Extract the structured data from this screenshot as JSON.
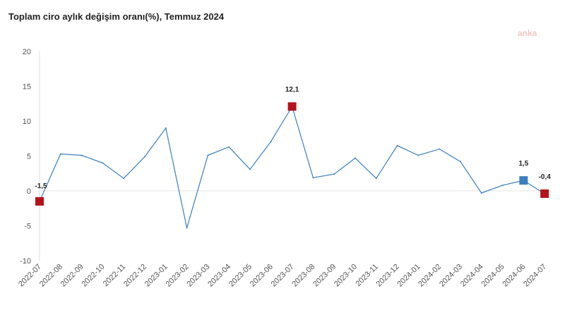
{
  "chart_data": {
    "type": "line",
    "title": "Toplam ciro aylık değişim oranı(%), Temmuz 2024",
    "watermark": "anka",
    "xlabel": "",
    "ylabel": "",
    "ylim": [
      -10,
      20
    ],
    "yticks": [
      20,
      15,
      10,
      5,
      0,
      -5,
      -10
    ],
    "grid": false,
    "categories": [
      "2022-07",
      "2022-08",
      "2022-09",
      "2022-10",
      "2022-11",
      "2022-12",
      "2023-01",
      "2023-02",
      "2023-03",
      "2023-04",
      "2023-05",
      "2023-06",
      "2023-07",
      "2023-08",
      "2023-09",
      "2023-10",
      "2023-11",
      "2023-12",
      "2024-01",
      "2024-02",
      "2024-03",
      "2024-04",
      "2024-05",
      "2024-06",
      "2024-07"
    ],
    "values": [
      -1.5,
      5.3,
      5.1,
      4.0,
      1.8,
      4.9,
      9.0,
      -5.3,
      5.1,
      6.3,
      3.1,
      7.1,
      12.1,
      1.9,
      2.4,
      4.7,
      1.8,
      6.5,
      5.1,
      6.0,
      4.2,
      -0.3,
      0.8,
      1.5,
      -0.4
    ],
    "line_color": "#3a7fc0",
    "markers": [
      {
        "index": 0,
        "label": "-1,5",
        "color": "#b5121b"
      },
      {
        "index": 12,
        "label": "12,1",
        "color": "#b5121b"
      },
      {
        "index": 23,
        "label": "1,5",
        "color": "#3a7fc0"
      },
      {
        "index": 24,
        "label": "-0,4",
        "color": "#b5121b"
      }
    ]
  }
}
